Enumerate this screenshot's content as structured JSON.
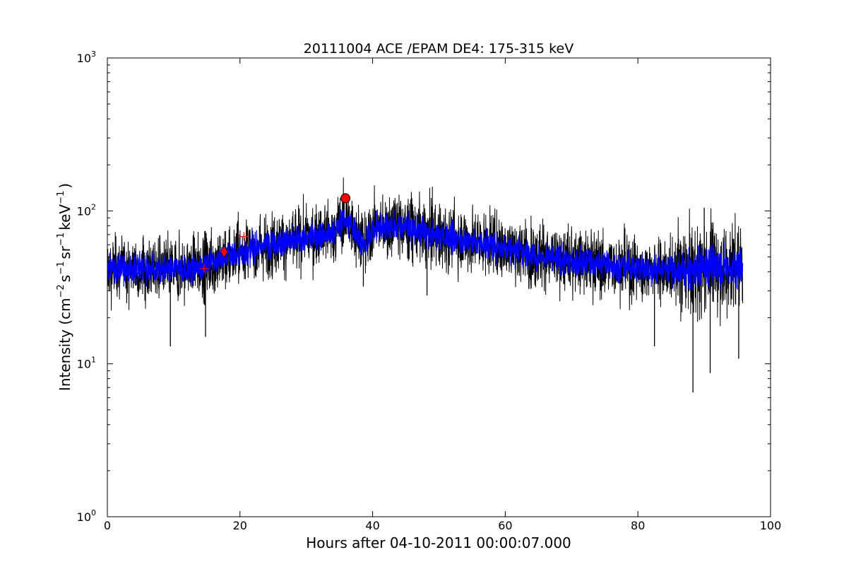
{
  "chart_data": {
    "type": "line",
    "title": "20111004 ACE /EPAM DE4: 175-315 keV",
    "xlabel": "Hours after 04-10-2011 00:00:07.000",
    "ylabel": "Intensity (cm⁻² s⁻¹ sr⁻¹ keV⁻¹)",
    "ylabel_parts": {
      "prefix": "Intensity (cm",
      "sup1": "−2",
      "s": "s",
      "sup2": "−1",
      "sr": "sr",
      "sup3": "−1",
      "kev": "keV",
      "sup4": "−1",
      "suffix": ")"
    },
    "xlim": [
      0,
      100
    ],
    "ylim": [
      1,
      1000
    ],
    "yscale": "log",
    "grid": false,
    "x_ticks": [
      {
        "value": 0,
        "label": "0"
      },
      {
        "value": 20,
        "label": "20"
      },
      {
        "value": 40,
        "label": "40"
      },
      {
        "value": 60,
        "label": "60"
      },
      {
        "value": 80,
        "label": "80"
      },
      {
        "value": 100,
        "label": "100"
      }
    ],
    "y_ticks": [
      {
        "value": 1,
        "base": "10",
        "exp": "0"
      },
      {
        "value": 10,
        "base": "10",
        "exp": "1"
      },
      {
        "value": 100,
        "base": "10",
        "exp": "2"
      },
      {
        "value": 1000,
        "base": "10",
        "exp": "3"
      }
    ],
    "series": [
      {
        "role": "raw intensity (noisy)",
        "color": "#000000",
        "x_range": [
          0,
          95.8
        ],
        "trend_x": [
          0,
          5,
          10,
          14,
          18,
          22,
          26,
          30,
          34,
          35.8,
          37,
          38.8,
          40,
          44,
          48,
          52,
          56,
          60,
          64,
          68,
          72,
          76,
          80,
          84,
          88,
          91,
          93,
          95.8
        ],
        "trend_y": [
          42,
          42,
          41,
          43,
          50,
          57,
          62,
          66,
          72,
          88,
          78,
          58,
          78,
          80,
          72,
          66,
          62,
          58,
          52,
          48,
          46,
          44,
          42,
          41,
          40,
          45,
          42,
          45
        ],
        "spikes": [
          {
            "x": 9.5,
            "y": 13
          },
          {
            "x": 14.8,
            "y": 15
          },
          {
            "x": 82.5,
            "y": 13
          },
          {
            "x": 88.3,
            "y": 6.5
          },
          {
            "x": 90.9,
            "y": 8.7
          },
          {
            "x": 95.2,
            "y": 10.8
          },
          {
            "x": 90.0,
            "y": 105
          },
          {
            "x": 38.6,
            "y": 32
          },
          {
            "x": 48.2,
            "y": 28
          }
        ]
      },
      {
        "role": "smoothed intensity",
        "color": "#0000ff",
        "x_range": [
          0,
          95.8
        ]
      }
    ],
    "markers": [
      {
        "shape": "plus",
        "x": 14.6,
        "y": 42,
        "color": "#ff0000"
      },
      {
        "shape": "diamond",
        "x": 17.6,
        "y": 54,
        "color": "#ff0000"
      },
      {
        "shape": "plus",
        "x": 20.6,
        "y": 68,
        "color": "#ff0000"
      },
      {
        "shape": "circle",
        "x": 35.9,
        "y": 121,
        "color": "#ff0000"
      }
    ]
  }
}
